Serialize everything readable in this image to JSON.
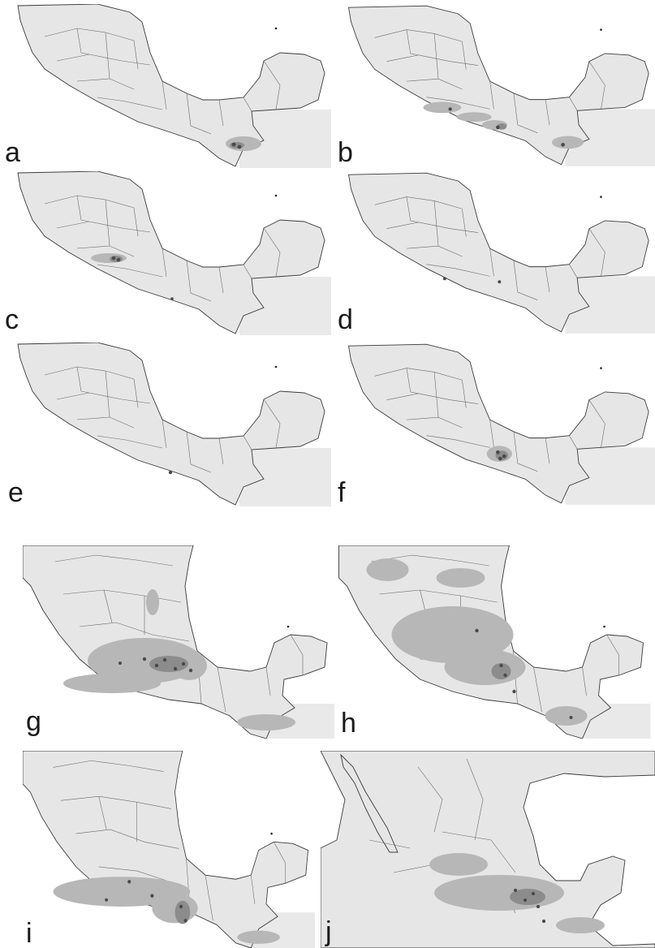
{
  "figure": {
    "panels": [
      {
        "id": "a",
        "label": "a"
      },
      {
        "id": "b",
        "label": "b"
      },
      {
        "id": "c",
        "label": "c"
      },
      {
        "id": "d",
        "label": "d"
      },
      {
        "id": "e",
        "label": "e"
      },
      {
        "id": "f",
        "label": "f"
      },
      {
        "id": "g",
        "label": "g"
      },
      {
        "id": "h",
        "label": "h"
      },
      {
        "id": "i",
        "label": "i"
      },
      {
        "id": "j",
        "label": "j"
      }
    ]
  },
  "colors": {
    "background": "#ffffff",
    "land": "#e6e6e6",
    "border": "#3a3a3a",
    "suitable_low": "#b7b7b7",
    "suitable_high": "#8c8c8c",
    "occurrence_points": "#4a4a4a"
  }
}
